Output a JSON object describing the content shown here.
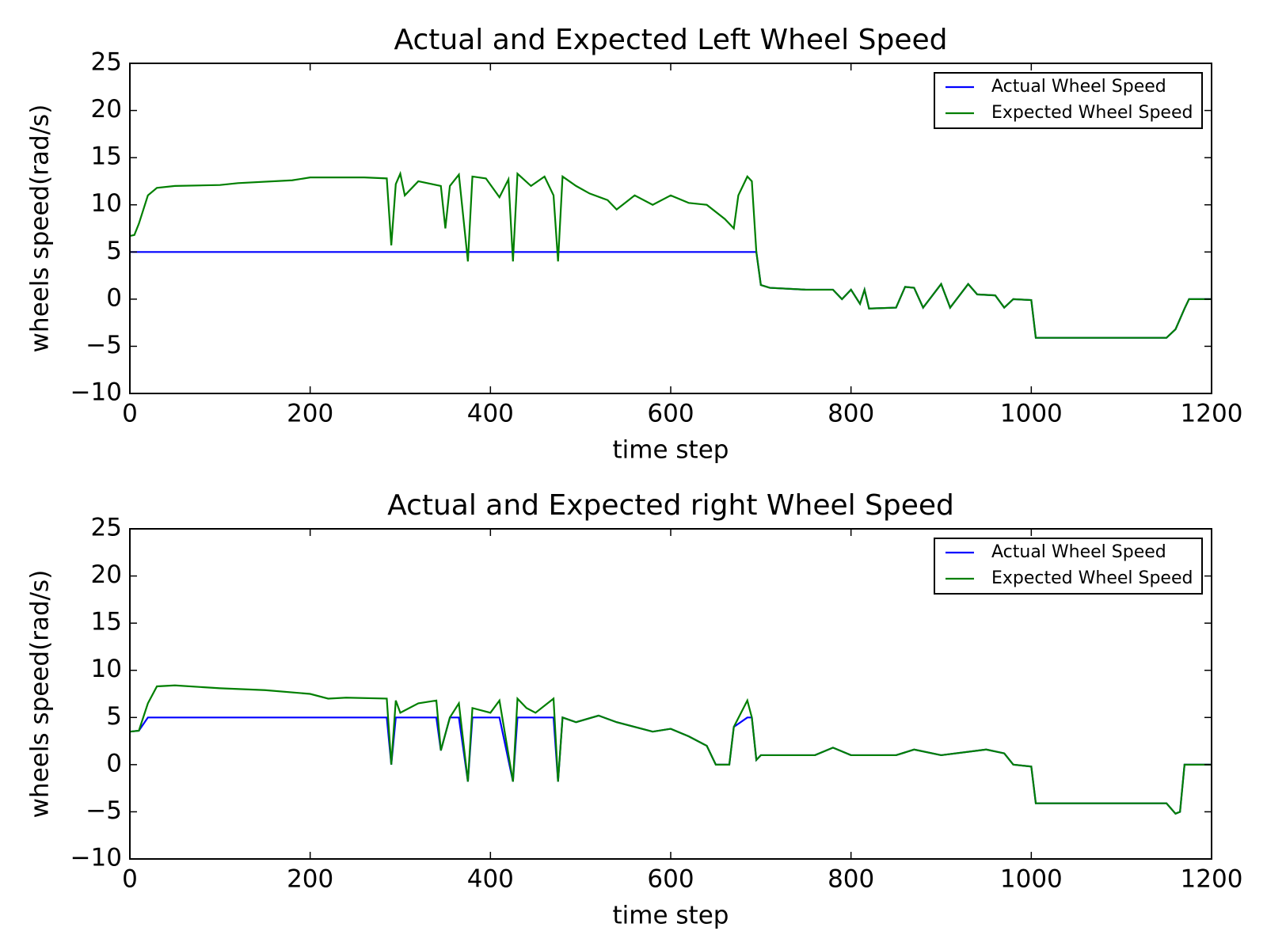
{
  "chart_data": [
    {
      "type": "line",
      "title": "Actual and Expected Left Wheel Speed",
      "x_label": "time step",
      "y_label": "wheels speed(rad/s)",
      "xlim": [
        0,
        1200
      ],
      "xticks": [
        0,
        200,
        400,
        600,
        800,
        1000,
        1200
      ],
      "ylim": [
        -10,
        25
      ],
      "yticks": [
        {
          "value": -10,
          "label": "−10"
        },
        {
          "value": -5,
          "label": "−5"
        },
        0,
        5,
        10,
        15,
        20,
        25
      ],
      "legend": "upper right",
      "grid": false,
      "x": [
        0,
        5,
        10,
        15,
        20,
        30,
        50,
        100,
        120,
        180,
        200,
        260,
        285,
        290,
        295,
        300,
        305,
        320,
        345,
        350,
        355,
        365,
        375,
        380,
        395,
        410,
        420,
        425,
        430,
        445,
        460,
        470,
        475,
        480,
        495,
        510,
        530,
        540,
        560,
        580,
        600,
        620,
        640,
        660,
        670,
        675,
        685,
        690,
        695,
        700,
        710,
        750,
        780,
        790,
        800,
        810,
        815,
        820,
        850,
        860,
        870,
        880,
        900,
        910,
        930,
        940,
        960,
        970,
        980,
        1000,
        1005,
        1150,
        1160,
        1170,
        1175,
        1200
      ],
      "series": [
        {
          "name": "Actual Wheel Speed",
          "color": "#0000ff",
          "values": [
            5,
            5,
            5,
            5,
            5,
            5,
            5,
            5,
            5,
            5,
            5,
            5,
            5,
            5,
            5,
            5,
            5,
            5,
            5,
            5,
            5,
            5,
            5,
            5,
            5,
            5,
            5,
            5,
            5,
            5,
            5,
            5,
            5,
            5,
            5,
            5,
            5,
            5,
            5,
            5,
            5,
            5,
            5,
            5,
            5,
            5,
            5,
            5,
            5.0,
            1.5,
            1.2,
            1.0,
            1.0,
            0,
            1.0,
            -0.5,
            1.0,
            -1.0,
            -0.9,
            1.3,
            1.2,
            -0.9,
            1.6,
            -0.9,
            1.6,
            0.5,
            0.4,
            -0.9,
            0,
            -0.1,
            -4.1,
            -4.1,
            -3.2,
            -1,
            0,
            0
          ]
        },
        {
          "name": "Expected Wheel Speed",
          "color": "#007f00",
          "values": [
            6.7,
            6.8,
            8.0,
            9.5,
            11.0,
            11.8,
            12.0,
            12.1,
            12.3,
            12.6,
            12.9,
            12.9,
            12.8,
            5.7,
            12.2,
            13.3,
            11.0,
            12.5,
            12.0,
            7.5,
            12.0,
            13.2,
            4.0,
            13.0,
            12.8,
            10.8,
            12.7,
            4.0,
            13.3,
            12.0,
            13.0,
            11.0,
            4.0,
            13.0,
            12.0,
            11.2,
            10.5,
            9.5,
            11.0,
            10.0,
            11.0,
            10.2,
            10.0,
            8.5,
            7.5,
            11.0,
            13.0,
            12.5,
            5.0,
            1.5,
            1.2,
            1.0,
            1.0,
            0,
            1.0,
            -0.5,
            1.0,
            -1.0,
            -0.9,
            1.3,
            1.2,
            -0.9,
            1.6,
            -0.9,
            1.6,
            0.5,
            0.4,
            -0.9,
            0,
            -0.1,
            -4.1,
            -4.1,
            -3.2,
            -1,
            0,
            0
          ]
        }
      ]
    },
    {
      "type": "line",
      "title": "Actual and Expected right Wheel Speed",
      "x_label": "time step",
      "y_label": "wheels speed(rad/s)",
      "xlim": [
        0,
        1200
      ],
      "xticks": [
        0,
        200,
        400,
        600,
        800,
        1000,
        1200
      ],
      "ylim": [
        -10,
        25
      ],
      "yticks": [
        {
          "value": -10,
          "label": "−10"
        },
        {
          "value": -5,
          "label": "−5"
        },
        0,
        5,
        10,
        15,
        20,
        25
      ],
      "legend": "upper right",
      "grid": false,
      "x": [
        0,
        10,
        20,
        30,
        50,
        100,
        150,
        200,
        220,
        240,
        285,
        290,
        295,
        300,
        320,
        340,
        345,
        355,
        365,
        375,
        380,
        400,
        410,
        425,
        430,
        440,
        450,
        470,
        475,
        480,
        495,
        520,
        540,
        560,
        580,
        600,
        620,
        640,
        650,
        665,
        670,
        685,
        690,
        695,
        700,
        760,
        780,
        800,
        850,
        870,
        900,
        950,
        970,
        980,
        1000,
        1005,
        1150,
        1160,
        1165,
        1170,
        1200
      ],
      "series": [
        {
          "name": "Actual Wheel Speed",
          "color": "#0000ff",
          "values": [
            3.5,
            3.6,
            5,
            5,
            5,
            5,
            5,
            5,
            5,
            5,
            5,
            0,
            5,
            5,
            5,
            5,
            1.5,
            5,
            5,
            -1.8,
            5,
            5,
            5,
            -1.8,
            5,
            5,
            5,
            5,
            -1.8,
            5,
            4.5,
            5.2,
            4.5,
            4.0,
            3.5,
            3.8,
            3.0,
            2.0,
            0,
            0,
            4.0,
            5.0,
            5.0,
            0.5,
            1.0,
            1.0,
            1.8,
            1.0,
            1.0,
            1.6,
            1.0,
            1.6,
            1.2,
            0,
            -0.2,
            -4.1,
            -4.1,
            -5.2,
            -5.0,
            0,
            0
          ]
        },
        {
          "name": "Expected Wheel Speed",
          "color": "#007f00",
          "values": [
            3.5,
            3.6,
            6.5,
            8.3,
            8.4,
            8.1,
            7.9,
            7.5,
            7.0,
            7.1,
            7.0,
            0,
            6.8,
            5.5,
            6.5,
            6.8,
            1.5,
            5.0,
            6.5,
            -1.8,
            6.0,
            5.5,
            6.8,
            -1.8,
            7.0,
            6.0,
            5.5,
            7.0,
            -1.8,
            5.0,
            4.5,
            5.2,
            4.5,
            4.0,
            3.5,
            3.8,
            3.0,
            2.0,
            0,
            0,
            4.0,
            6.8,
            5.0,
            0.5,
            1.0,
            1.0,
            1.8,
            1.0,
            1.0,
            1.6,
            1.0,
            1.6,
            1.2,
            0,
            -0.2,
            -4.1,
            -4.1,
            -5.2,
            -5.0,
            0,
            0
          ]
        }
      ]
    }
  ]
}
